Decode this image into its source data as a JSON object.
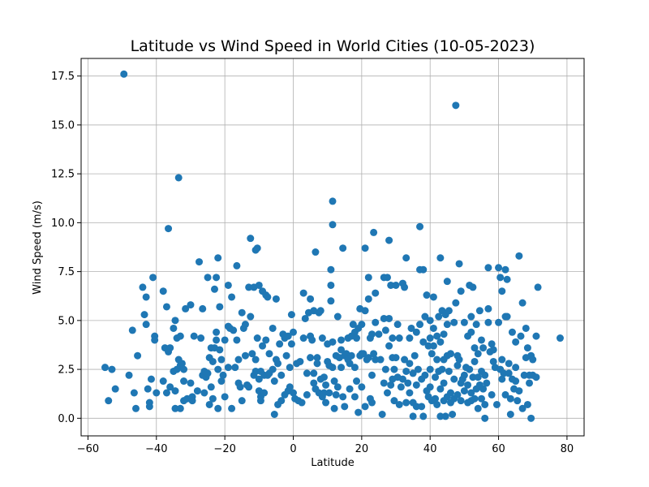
{
  "chart_data": {
    "type": "scatter",
    "title": "Latitude vs Wind Speed in World Cities (10-05-2023)",
    "xlabel": "Latitude",
    "ylabel": "Wind Speed (m/s)",
    "xlim": [
      -62,
      85
    ],
    "ylim": [
      -0.9,
      18.4
    ],
    "xticks": [
      -60,
      -40,
      -20,
      0,
      20,
      40,
      60,
      80
    ],
    "xtick_labels": [
      "−60",
      "−40",
      "−20",
      "0",
      "20",
      "40",
      "60",
      "80"
    ],
    "yticks": [
      0.0,
      2.5,
      5.0,
      7.5,
      10.0,
      12.5,
      15.0,
      17.5
    ],
    "ytick_labels": [
      "0.0",
      "2.5",
      "5.0",
      "7.5",
      "10.0",
      "12.5",
      "15.0",
      "17.5"
    ],
    "grid": true,
    "marker_color": "#1f77b4",
    "points": [
      [
        -55,
        2.6
      ],
      [
        -54,
        0.9
      ],
      [
        -53,
        2.5
      ],
      [
        -52,
        1.5
      ],
      [
        -49.5,
        17.6
      ],
      [
        -48,
        2.2
      ],
      [
        -47,
        4.5
      ],
      [
        -46.5,
        1.3
      ],
      [
        -46,
        0.5
      ],
      [
        -45.5,
        3.2
      ],
      [
        -44,
        6.7
      ],
      [
        -43.5,
        5.3
      ],
      [
        -43,
        6.2
      ],
      [
        -43,
        4.8
      ],
      [
        -42.5,
        1.5
      ],
      [
        -42,
        0.6
      ],
      [
        -42,
        0.8
      ],
      [
        -41.5,
        2.0
      ],
      [
        -41,
        7.2
      ],
      [
        -40.5,
        4.2
      ],
      [
        -40.5,
        4.0
      ],
      [
        -40,
        1.3
      ],
      [
        -38,
        6.5
      ],
      [
        -38,
        1.9
      ],
      [
        -37.5,
        3.6
      ],
      [
        -37,
        1.3
      ],
      [
        -37,
        5.7
      ],
      [
        -36.5,
        9.7
      ],
      [
        -36.5,
        3.4
      ],
      [
        -36,
        3.6
      ],
      [
        -36,
        1.6
      ],
      [
        -35,
        4.6
      ],
      [
        -35,
        2.4
      ],
      [
        -34.5,
        5.0
      ],
      [
        -34.5,
        0.5
      ],
      [
        -34.5,
        1.4
      ],
      [
        -34,
        2.5
      ],
      [
        -34,
        4.1
      ],
      [
        -33.5,
        3.0
      ],
      [
        -33.5,
        12.3
      ],
      [
        -33,
        0.5
      ],
      [
        -33,
        2.7
      ],
      [
        -33,
        4.2
      ],
      [
        -32.5,
        2.8
      ],
      [
        -32,
        2.5
      ],
      [
        -32,
        1.9
      ],
      [
        -32,
        0.9
      ],
      [
        -31.5,
        5.6
      ],
      [
        -31,
        1.0
      ],
      [
        -30,
        1.8
      ],
      [
        -30,
        5.8
      ],
      [
        -29.5,
        1.1
      ],
      [
        -29.5,
        0.9
      ],
      [
        -29,
        4.2
      ],
      [
        -28,
        1.4
      ],
      [
        -27.5,
        8.0
      ],
      [
        -27,
        4.1
      ],
      [
        -26.5,
        5.6
      ],
      [
        -26.5,
        2.2
      ],
      [
        -26,
        2.4
      ],
      [
        -26,
        1.3
      ],
      [
        -25.5,
        2.1
      ],
      [
        -25,
        7.2
      ],
      [
        -25,
        2.3
      ],
      [
        -24.5,
        0.7
      ],
      [
        -24.5,
        3.1
      ],
      [
        -24,
        3.6
      ],
      [
        -24,
        1.6
      ],
      [
        -23.5,
        2.9
      ],
      [
        -23.5,
        1.0
      ],
      [
        -23,
        3.6
      ],
      [
        -23,
        6.6
      ],
      [
        -22.5,
        7.2
      ],
      [
        -22.5,
        4.4
      ],
      [
        -22.5,
        4.0
      ],
      [
        -22,
        8.2
      ],
      [
        -22,
        2.5
      ],
      [
        -22,
        0.5
      ],
      [
        -21.5,
        3.5
      ],
      [
        -21.5,
        5.7
      ],
      [
        -21,
        3.0
      ],
      [
        -21,
        1.9
      ],
      [
        -20.5,
        2.2
      ],
      [
        -20,
        1.1
      ],
      [
        -20,
        4.0
      ],
      [
        -19,
        6.8
      ],
      [
        -19,
        2.6
      ],
      [
        -19,
        4.7
      ],
      [
        -18.5,
        4.6
      ],
      [
        -18,
        6.2
      ],
      [
        -18,
        0.5
      ],
      [
        -17.5,
        4.5
      ],
      [
        -17,
        2.6
      ],
      [
        -16.5,
        7.8
      ],
      [
        -16.5,
        4.0
      ],
      [
        -16,
        1.8
      ],
      [
        -16,
        3.0
      ],
      [
        -15.5,
        1.6
      ],
      [
        -15,
        0.9
      ],
      [
        -15,
        5.4
      ],
      [
        -14.5,
        4.6
      ],
      [
        -14,
        3.2
      ],
      [
        -14,
        4.8
      ],
      [
        -13.5,
        1.7
      ],
      [
        -13,
        6.7
      ],
      [
        -13,
        1.6
      ],
      [
        -12.5,
        9.2
      ],
      [
        -12.5,
        5.2
      ],
      [
        -12,
        3.3
      ],
      [
        -11.5,
        2.2
      ],
      [
        -11.5,
        6.7
      ],
      [
        -11,
        3.0
      ],
      [
        -11,
        8.6
      ],
      [
        -11,
        2.4
      ],
      [
        -10.5,
        8.7
      ],
      [
        -10.5,
        4.1
      ],
      [
        -10,
        1.4
      ],
      [
        -10,
        2.0
      ],
      [
        -10,
        6.8
      ],
      [
        -9.5,
        0.9
      ],
      [
        -9.5,
        1.1
      ],
      [
        -9.5,
        2.4
      ],
      [
        -9,
        6.5
      ],
      [
        -9,
        3.7
      ],
      [
        -8.5,
        1.3
      ],
      [
        -8.5,
        2.2
      ],
      [
        -8,
        6.3
      ],
      [
        -8,
        4.0
      ],
      [
        -7.5,
        6.2
      ],
      [
        -7.5,
        2.2
      ],
      [
        -7,
        3.3
      ],
      [
        -7,
        2.3
      ],
      [
        -6,
        2.5
      ],
      [
        -6,
        4.6
      ],
      [
        -5.5,
        0.2
      ],
      [
        -5.5,
        1.9
      ],
      [
        -5,
        6.1
      ],
      [
        -5,
        3.0
      ],
      [
        -4.5,
        2.8
      ],
      [
        -4.5,
        0.7
      ],
      [
        -4,
        3.8
      ],
      [
        -3.5,
        2.2
      ],
      [
        -3.5,
        0.9
      ],
      [
        -3,
        4.3
      ],
      [
        -2.5,
        1.2
      ],
      [
        -2.5,
        4.1
      ],
      [
        -2,
        3.2
      ],
      [
        -1.5,
        1.4
      ],
      [
        -1.5,
        4.2
      ],
      [
        -1,
        1.6
      ],
      [
        -1,
        2.6
      ],
      [
        -0.5,
        5.3
      ],
      [
        -0.5,
        3.8
      ],
      [
        0,
        4.4
      ],
      [
        0,
        1.3
      ],
      [
        0.5,
        1.0
      ],
      [
        1,
        2.8
      ],
      [
        1.5,
        0.9
      ],
      [
        2,
        2.9
      ],
      [
        2.5,
        0.8
      ],
      [
        3,
        6.4
      ],
      [
        3,
        4.1
      ],
      [
        3.5,
        5.1
      ],
      [
        4,
        1.2
      ],
      [
        4,
        2.3
      ],
      [
        4.5,
        5.4
      ],
      [
        5,
        4.2
      ],
      [
        5,
        3.1
      ],
      [
        5,
        6.1
      ],
      [
        5.5,
        4.0
      ],
      [
        6,
        5.5
      ],
      [
        6,
        1.8
      ],
      [
        6,
        2.3
      ],
      [
        6.5,
        8.5
      ],
      [
        6.5,
        1.5
      ],
      [
        7,
        2.8
      ],
      [
        7,
        3.1
      ],
      [
        7.5,
        5.4
      ],
      [
        7.5,
        1.3
      ],
      [
        8,
        2.0
      ],
      [
        8,
        5.5
      ],
      [
        8.5,
        1.1
      ],
      [
        8.5,
        4.1
      ],
      [
        9,
        1.3
      ],
      [
        9,
        2.1
      ],
      [
        9.5,
        1.7
      ],
      [
        9.5,
        0.8
      ],
      [
        10,
        2.9
      ],
      [
        10,
        3.8
      ],
      [
        10.5,
        1.3
      ],
      [
        10.5,
        2.7
      ],
      [
        11,
        6.0
      ],
      [
        11,
        6.8
      ],
      [
        11,
        7.6
      ],
      [
        11.5,
        3.9
      ],
      [
        11.5,
        11.1
      ],
      [
        11.5,
        9.9
      ],
      [
        11.5,
        2.6
      ],
      [
        12,
        1.9
      ],
      [
        12,
        0.5
      ],
      [
        12.5,
        1.2
      ],
      [
        12.5,
        3.2
      ],
      [
        13,
        5.2
      ],
      [
        13,
        1.6
      ],
      [
        13.5,
        3.1
      ],
      [
        14,
        3.5
      ],
      [
        14,
        4.0
      ],
      [
        14,
        2.6
      ],
      [
        14.5,
        8.7
      ],
      [
        14.5,
        1.1
      ],
      [
        15,
        0.6
      ],
      [
        15,
        3.2
      ],
      [
        15.5,
        3.3
      ],
      [
        16,
        3.0
      ],
      [
        16,
        4.1
      ],
      [
        16.5,
        2.8
      ],
      [
        16.5,
        1.5
      ],
      [
        17,
        3.2
      ],
      [
        17,
        4.2
      ],
      [
        17.5,
        4.8
      ],
      [
        18,
        4.4
      ],
      [
        18,
        2.6
      ],
      [
        18,
        1.1
      ],
      [
        18.5,
        1.9
      ],
      [
        18.5,
        4.1
      ],
      [
        19,
        0.3
      ],
      [
        19,
        4.6
      ],
      [
        19.5,
        3.2
      ],
      [
        19.5,
        5.6
      ],
      [
        20,
        3.3
      ],
      [
        20,
        1.6
      ],
      [
        20,
        4.8
      ],
      [
        20.5,
        3.3
      ],
      [
        21,
        8.7
      ],
      [
        21,
        5.5
      ],
      [
        21,
        0.6
      ],
      [
        21.5,
        3.0
      ],
      [
        22,
        7.2
      ],
      [
        22,
        3.1
      ],
      [
        22,
        6.1
      ],
      [
        22.5,
        1.0
      ],
      [
        22.5,
        4.1
      ],
      [
        23,
        0.8
      ],
      [
        23,
        2.2
      ],
      [
        23,
        4.3
      ],
      [
        23.5,
        3.3
      ],
      [
        23.5,
        9.5
      ],
      [
        24,
        6.4
      ],
      [
        24,
        4.9
      ],
      [
        24,
        3.0
      ],
      [
        25,
        4.3
      ],
      [
        25.5,
        3.0
      ],
      [
        26,
        0.2
      ],
      [
        26.5,
        1.8
      ],
      [
        26.5,
        7.2
      ],
      [
        26.5,
        5.1
      ],
      [
        27,
        4.5
      ],
      [
        27,
        2.5
      ],
      [
        27.5,
        1.3
      ],
      [
        27.5,
        7.2
      ],
      [
        28,
        3.7
      ],
      [
        28,
        9.1
      ],
      [
        28,
        5.1
      ],
      [
        28.5,
        1.7
      ],
      [
        28.5,
        6.8
      ],
      [
        29,
        4.1
      ],
      [
        29,
        2.0
      ],
      [
        29,
        3.1
      ],
      [
        29.5,
        0.9
      ],
      [
        29.5,
        2.5
      ],
      [
        30,
        6.8
      ],
      [
        30,
        3.1
      ],
      [
        30.5,
        2.1
      ],
      [
        30.5,
        4.8
      ],
      [
        31,
        4.1
      ],
      [
        31,
        0.7
      ],
      [
        31.5,
        1.6
      ],
      [
        32,
        6.9
      ],
      [
        32,
        2.0
      ],
      [
        32.5,
        6.7
      ],
      [
        32.5,
        3.0
      ],
      [
        33,
        8.2
      ],
      [
        33,
        2.4
      ],
      [
        33,
        0.8
      ],
      [
        33.5,
        1.8
      ],
      [
        34,
        4.1
      ],
      [
        34,
        2.8
      ],
      [
        34,
        1.3
      ],
      [
        34.5,
        4.6
      ],
      [
        35,
        0.8
      ],
      [
        35,
        2.3
      ],
      [
        35,
        0.1
      ],
      [
        35.5,
        3.2
      ],
      [
        36,
        4.4
      ],
      [
        36,
        0.6
      ],
      [
        36,
        1.7
      ],
      [
        36.5,
        2.5
      ],
      [
        37,
        9.8
      ],
      [
        37,
        7.6
      ],
      [
        37,
        4.8
      ],
      [
        37.5,
        2.0
      ],
      [
        37.5,
        0.6
      ],
      [
        38,
        3.9
      ],
      [
        38,
        7.6
      ],
      [
        38,
        0.1
      ],
      [
        38.5,
        5.2
      ],
      [
        38.5,
        2.2
      ],
      [
        39,
        6.3
      ],
      [
        39,
        1.4
      ],
      [
        39.5,
        3.7
      ],
      [
        39.5,
        1.1
      ],
      [
        40,
        4.1
      ],
      [
        40,
        5.0
      ],
      [
        40,
        2.5
      ],
      [
        40,
        1.6
      ],
      [
        40.5,
        3.3
      ],
      [
        40.5,
        0.9
      ],
      [
        41,
        3.7
      ],
      [
        41,
        4.6
      ],
      [
        41,
        6.2
      ],
      [
        41.5,
        2.1
      ],
      [
        41.5,
        1.0
      ],
      [
        42,
        3.0
      ],
      [
        42,
        0.7
      ],
      [
        42,
        4.2
      ],
      [
        42.5,
        5.2
      ],
      [
        42.5,
        2.4
      ],
      [
        43,
        1.5
      ],
      [
        43,
        8.2
      ],
      [
        43,
        3.9
      ],
      [
        43,
        0.1
      ],
      [
        43.5,
        2.5
      ],
      [
        43.5,
        5.5
      ],
      [
        44,
        0.9
      ],
      [
        44,
        1.8
      ],
      [
        44,
        3.0
      ],
      [
        44,
        4.3
      ],
      [
        44.5,
        5.3
      ],
      [
        44.5,
        0.1
      ],
      [
        45,
        4.8
      ],
      [
        45,
        1.1
      ],
      [
        45,
        3.2
      ],
      [
        45,
        7.0
      ],
      [
        45.5,
        2.4
      ],
      [
        45.5,
        5.5
      ],
      [
        46,
        0.8
      ],
      [
        46,
        3.3
      ],
      [
        46,
        1.3
      ],
      [
        46.5,
        0.2
      ],
      [
        47,
        2.0
      ],
      [
        47,
        4.9
      ],
      [
        47,
        1.0
      ],
      [
        47.5,
        16.0
      ],
      [
        47.5,
        5.9
      ],
      [
        48,
        3.2
      ],
      [
        48,
        2.7
      ],
      [
        48,
        1.2
      ],
      [
        48.5,
        7.9
      ],
      [
        48.5,
        3.0
      ],
      [
        49,
        6.5
      ],
      [
        49,
        1.8
      ],
      [
        49,
        0.9
      ],
      [
        49.5,
        2.0
      ],
      [
        50,
        2.2
      ],
      [
        50,
        4.9
      ],
      [
        50,
        1.4
      ],
      [
        50.5,
        2.6
      ],
      [
        51,
        0.8
      ],
      [
        51,
        1.7
      ],
      [
        51,
        4.2
      ],
      [
        51.5,
        2.5
      ],
      [
        51.5,
        6.8
      ],
      [
        52,
        1.3
      ],
      [
        52,
        4.4
      ],
      [
        52,
        5.2
      ],
      [
        52,
        0.9
      ],
      [
        52.5,
        6.7
      ],
      [
        52.5,
        2.1
      ],
      [
        53,
        3.6
      ],
      [
        53,
        1.0
      ],
      [
        53,
        2.9
      ],
      [
        53.5,
        1.5
      ],
      [
        53.5,
        4.8
      ],
      [
        54,
        0.5
      ],
      [
        54,
        2.1
      ],
      [
        54,
        3.3
      ],
      [
        54.5,
        5.5
      ],
      [
        54.5,
        1.7
      ],
      [
        55,
        1.0
      ],
      [
        55,
        2.4
      ],
      [
        55,
        4.0
      ],
      [
        55.5,
        1.5
      ],
      [
        55.5,
        3.6
      ],
      [
        56,
        0.7
      ],
      [
        56,
        2.2
      ],
      [
        56,
        0.0
      ],
      [
        56.5,
        1.8
      ],
      [
        57,
        7.7
      ],
      [
        57,
        5.6
      ],
      [
        57,
        4.9
      ],
      [
        57.5,
        3.4
      ],
      [
        58,
        3.8
      ],
      [
        58,
        1.2
      ],
      [
        58.5,
        2.9
      ],
      [
        58.5,
        3.5
      ],
      [
        59,
        2.6
      ],
      [
        59.5,
        0.7
      ],
      [
        60,
        7.7
      ],
      [
        60,
        4.9
      ],
      [
        60.5,
        7.2
      ],
      [
        60.5,
        2.5
      ],
      [
        61,
        2.0
      ],
      [
        61,
        6.5
      ],
      [
        61,
        3.0
      ],
      [
        61.5,
        2.3
      ],
      [
        62,
        7.6
      ],
      [
        62,
        5.2
      ],
      [
        62,
        1.2
      ],
      [
        62.5,
        7.1
      ],
      [
        62.5,
        5.2
      ],
      [
        63,
        2.8
      ],
      [
        63,
        2.3
      ],
      [
        63.5,
        1.0
      ],
      [
        63.5,
        0.2
      ],
      [
        64,
        4.4
      ],
      [
        64,
        2.0
      ],
      [
        64.5,
        1.5
      ],
      [
        65,
        1.9
      ],
      [
        65,
        3.9
      ],
      [
        65,
        2.6
      ],
      [
        65.5,
        0.9
      ],
      [
        66,
        1.4
      ],
      [
        66,
        8.3
      ],
      [
        66.5,
        4.2
      ],
      [
        67,
        0.5
      ],
      [
        67,
        5.9
      ],
      [
        67.5,
        2.2
      ],
      [
        68,
        4.6
      ],
      [
        68,
        3.1
      ],
      [
        68.5,
        0.7
      ],
      [
        68.5,
        3.6
      ],
      [
        69,
        2.2
      ],
      [
        69,
        1.8
      ],
      [
        69.5,
        3.2
      ],
      [
        69.5,
        0.0
      ],
      [
        70,
        3.0
      ],
      [
        70,
        2.2
      ],
      [
        71,
        2.1
      ],
      [
        71,
        4.2
      ],
      [
        71.5,
        6.7
      ],
      [
        78,
        4.1
      ]
    ]
  }
}
